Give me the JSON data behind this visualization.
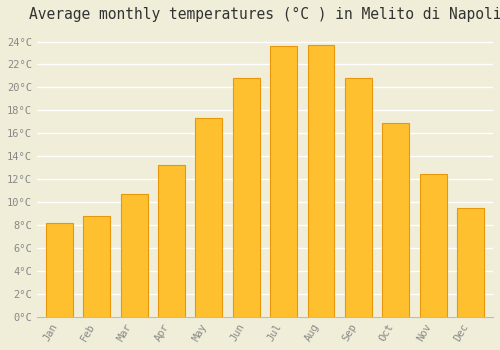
{
  "title": "Average monthly temperatures (°C ) in Melito di Napoli",
  "months": [
    "Jan",
    "Feb",
    "Mar",
    "Apr",
    "May",
    "Jun",
    "Jul",
    "Aug",
    "Sep",
    "Oct",
    "Nov",
    "Dec"
  ],
  "values": [
    8.2,
    8.8,
    10.7,
    13.2,
    17.3,
    20.8,
    23.6,
    23.7,
    20.8,
    16.9,
    12.5,
    9.5
  ],
  "bar_color": "#FFC030",
  "bar_edge_color": "#E8960A",
  "background_color": "#F0EED8",
  "grid_color": "#FFFFFF",
  "title_fontsize": 10.5,
  "tick_label_color": "#888888",
  "ylim": [
    0,
    25
  ],
  "ytick_step": 2,
  "font_family": "monospace",
  "bar_width": 0.72
}
